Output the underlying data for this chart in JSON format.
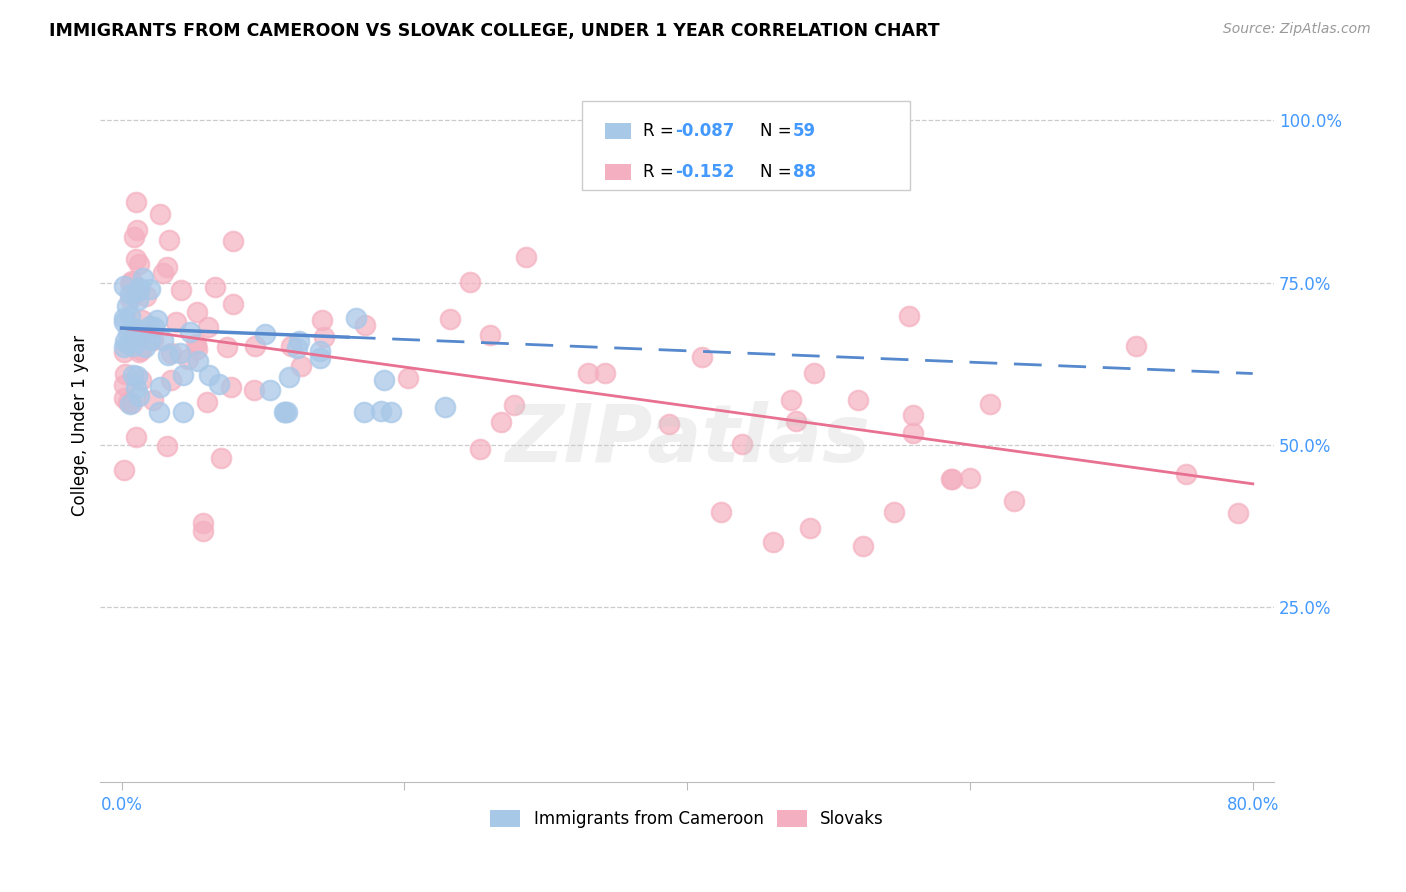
{
  "title": "IMMIGRANTS FROM CAMEROON VS SLOVAK COLLEGE, UNDER 1 YEAR CORRELATION CHART",
  "source": "Source: ZipAtlas.com",
  "ylabel": "College, Under 1 year",
  "color_blue": "#A8C8E8",
  "color_blue_line": "#5588CC",
  "color_pink": "#F4B0C0",
  "color_pink_line": "#E87090",
  "color_text_blue": "#4499FF",
  "watermark": "ZIPatlas",
  "legend_r1": "R = -0.087",
  "legend_n1": "N = 59",
  "legend_r2": "R =  -0.152",
  "legend_n2": "N = 88"
}
